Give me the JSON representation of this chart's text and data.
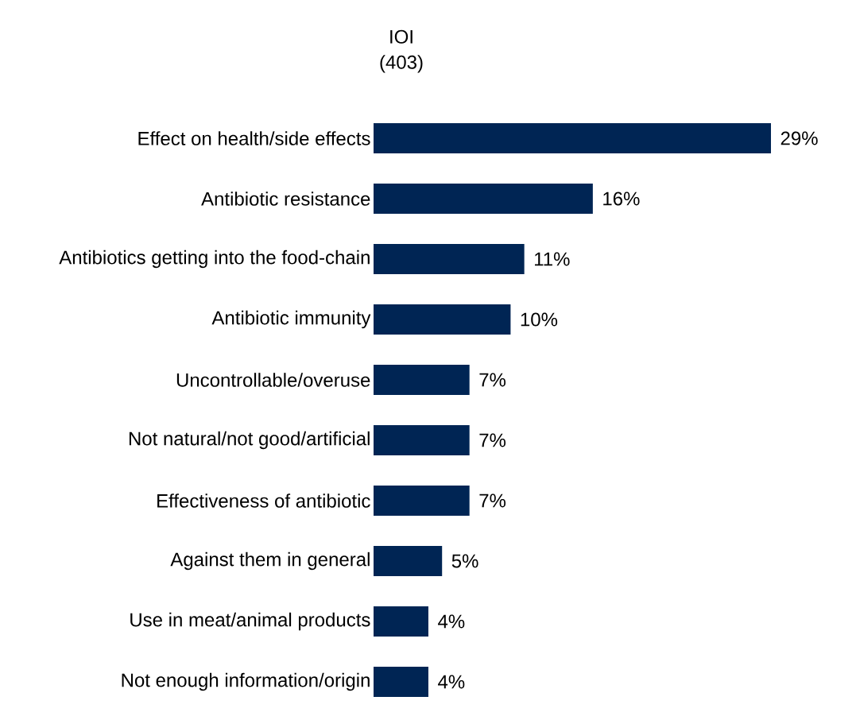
{
  "chart_data": {
    "type": "bar",
    "orientation": "horizontal",
    "title": "IOI",
    "subtitle": "(403)",
    "categories": [
      "Effect on health/side effects",
      "Antibiotic resistance",
      "Antibiotics getting into the food-chain",
      "Antibiotic immunity",
      "Uncontrollable/overuse",
      "Not natural/not good/artificial",
      "Effectiveness of antibiotic",
      "Against them in general",
      "Use in meat/animal products",
      "Not enough information/origin"
    ],
    "values": [
      29,
      16,
      11,
      10,
      7,
      7,
      7,
      5,
      4,
      4
    ],
    "value_labels": [
      "29%",
      "16%",
      "11%",
      "10%",
      "7%",
      "7%",
      "7%",
      "5%",
      "4%",
      "4%"
    ],
    "color": "#002554"
  }
}
